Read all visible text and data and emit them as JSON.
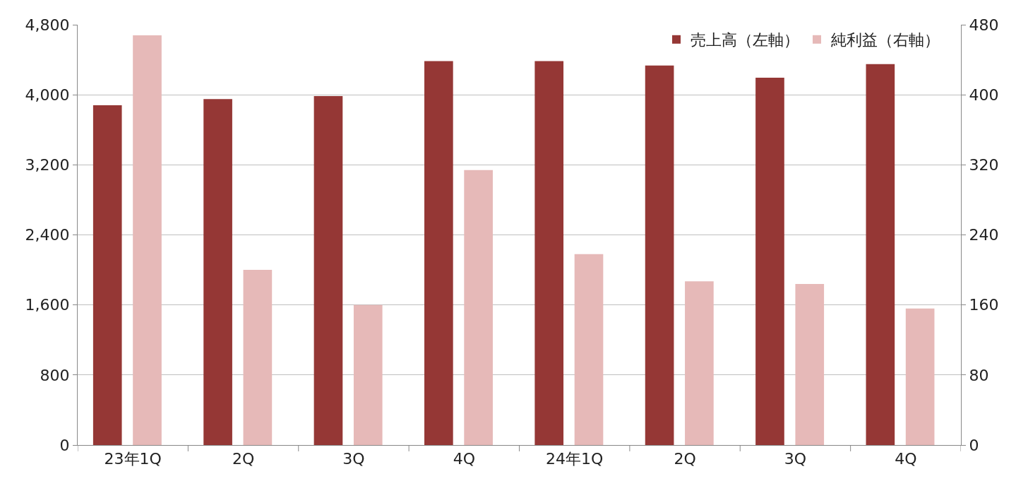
{
  "chart_data": {
    "type": "bar",
    "categories": [
      "23年1Q",
      "2Q",
      "3Q",
      "4Q",
      "24年1Q",
      "2Q",
      "3Q",
      "4Q"
    ],
    "series": [
      {
        "name": "売上高（左軸）",
        "color": "#953735",
        "values": [
          3880,
          3950,
          3985,
          4385,
          4385,
          4335,
          4195,
          4350
        ]
      },
      {
        "name": "純利益（右軸）",
        "color": "#e6b9b8",
        "axis": "y2",
        "values": [
          468,
          200,
          160,
          314,
          218,
          187,
          184,
          156
        ]
      }
    ],
    "ylim": [
      0,
      4800
    ],
    "yticks": [
      {
        "value": 0,
        "label": "0"
      },
      {
        "value": 800,
        "label": "800"
      },
      {
        "value": 1600,
        "label": "1,600"
      },
      {
        "value": 2400,
        "label": "2,400"
      },
      {
        "value": 3200,
        "label": "3,200"
      },
      {
        "value": 4000,
        "label": "4,000"
      },
      {
        "value": 4800,
        "label": "4,800"
      }
    ],
    "y2lim": [
      0,
      480
    ],
    "y2ticks": [
      0,
      80,
      160,
      240,
      320,
      400,
      480
    ],
    "grid": "y",
    "legend": "top right"
  }
}
